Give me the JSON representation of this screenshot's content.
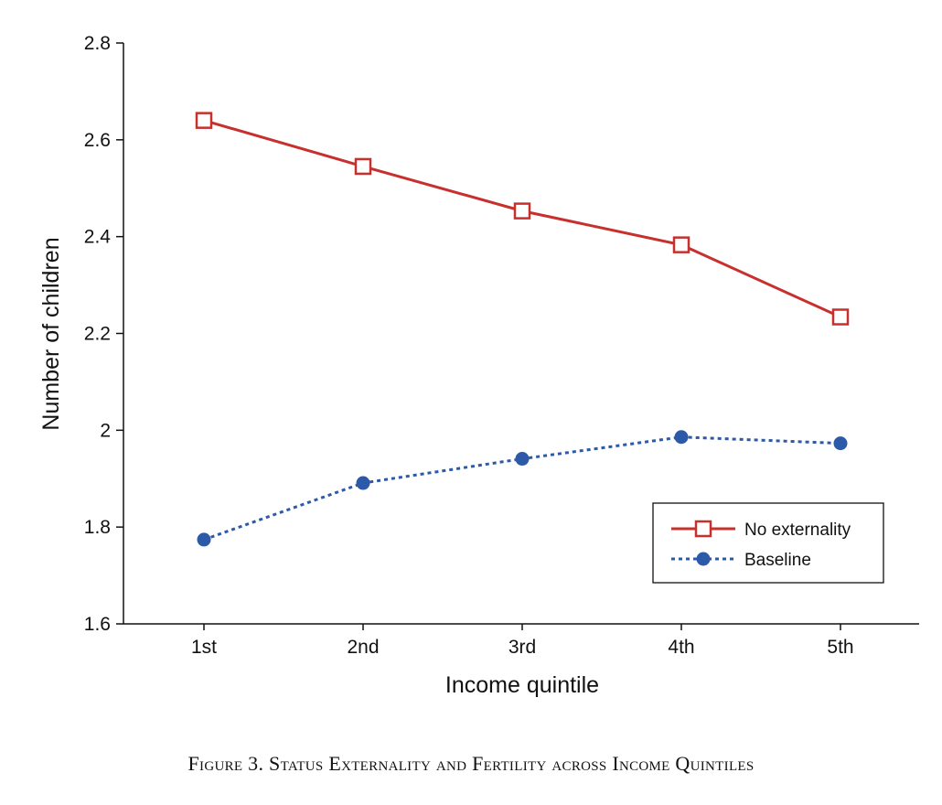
{
  "chart_data": {
    "type": "line",
    "xlabel": "Income quintile",
    "ylabel": "Number of children",
    "categories": [
      "1st",
      "2nd",
      "3rd",
      "4th",
      "5th"
    ],
    "ylim": [
      1.6,
      2.8
    ],
    "yticks": [
      1.6,
      1.8,
      2,
      2.2,
      2.4,
      2.6,
      2.8
    ],
    "ytick_labels": [
      "1.6",
      "1.8",
      "2",
      "2.2",
      "2.4",
      "2.6",
      "2.8"
    ],
    "legend_position": "lower-right",
    "series": [
      {
        "name": "No externality",
        "values": [
          2.64,
          2.545,
          2.453,
          2.383,
          2.234
        ],
        "color": "#c8302e",
        "marker": "open-square",
        "line": "solid"
      },
      {
        "name": "Baseline",
        "values": [
          1.774,
          1.891,
          1.941,
          1.986,
          1.973
        ],
        "color": "#2c5aa8",
        "marker": "filled-circle",
        "line": "dotted"
      }
    ]
  },
  "caption": "Figure 3. Status Externality and Fertility across Income Quintiles"
}
